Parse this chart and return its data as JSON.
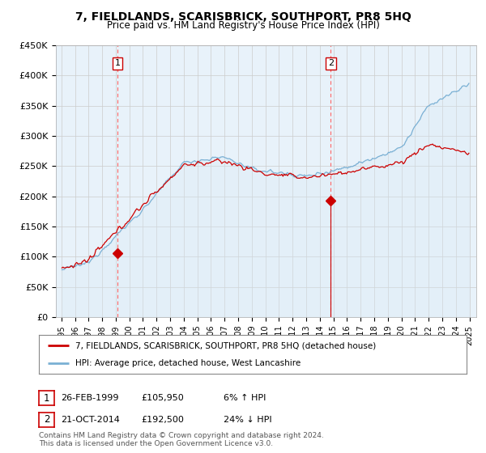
{
  "title": "7, FIELDLANDS, SCARISBRICK, SOUTHPORT, PR8 5HQ",
  "subtitle": "Price paid vs. HM Land Registry's House Price Index (HPI)",
  "ylabel_ticks": [
    "£0",
    "£50K",
    "£100K",
    "£150K",
    "£200K",
    "£250K",
    "£300K",
    "£350K",
    "£400K",
    "£450K"
  ],
  "ylabel_values": [
    0,
    50000,
    100000,
    150000,
    200000,
    250000,
    300000,
    350000,
    400000,
    450000
  ],
  "ylim": [
    0,
    450000
  ],
  "sale1_year": 1999.12,
  "sale1_price": 105950,
  "sale1_label": "1",
  "sale1_date": "26-FEB-1999",
  "sale1_price_str": "£105,950",
  "sale1_pct": "6% ↑ HPI",
  "sale2_year": 2014.8,
  "sale2_price": 192500,
  "sale2_label": "2",
  "sale2_date": "21-OCT-2014",
  "sale2_price_str": "£192,500",
  "sale2_pct": "24% ↓ HPI",
  "legend1": "7, FIELDLANDS, SCARISBRICK, SOUTHPORT, PR8 5HQ (detached house)",
  "legend2": "HPI: Average price, detached house, West Lancashire",
  "footer": "Contains HM Land Registry data © Crown copyright and database right 2024.\nThis data is licensed under the Open Government Licence v3.0.",
  "property_color": "#cc0000",
  "hpi_color": "#7ab0d4",
  "hpi_fill_color": "#daeaf5",
  "sale_marker_color": "#cc0000",
  "dashed_line_color": "#ff6666",
  "background_color": "#ffffff",
  "grid_color": "#cccccc",
  "chart_bg_color": "#e8f2fa"
}
